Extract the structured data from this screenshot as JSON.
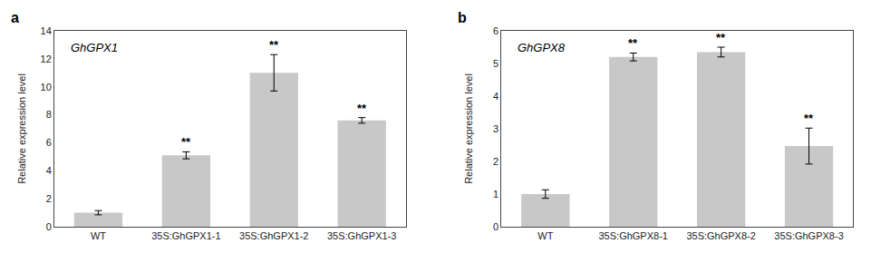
{
  "chart_data": [
    {
      "type": "bar",
      "title": "GhGPX1",
      "panel_label": "a",
      "categories": [
        "WT",
        "35S:GhGPX1-1",
        "35S:GhGPX1-2",
        "35S:GhGPX1-3"
      ],
      "values": [
        1.0,
        5.1,
        11.0,
        7.6
      ],
      "errors": [
        0.15,
        0.25,
        1.3,
        0.2
      ],
      "ylabel": "Relative expression level",
      "ylim": [
        0,
        14
      ],
      "yticks": [
        0,
        2,
        4,
        6,
        8,
        10,
        12,
        14
      ],
      "color": "#c8c8c8",
      "grid": false,
      "annotations": [
        {
          "category": "35S:GhGPX1-1",
          "text": "**"
        },
        {
          "category": "35S:GhGPX1-2",
          "text": "**"
        },
        {
          "category": "35S:GhGPX1-3",
          "text": "**"
        }
      ]
    },
    {
      "type": "bar",
      "title": "GhGPX8",
      "panel_label": "b",
      "categories": [
        "WT",
        "35S:GhGPX8-1",
        "35S:GhGPX8-2",
        "35S:GhGPX8-3"
      ],
      "values": [
        1.0,
        5.2,
        5.35,
        2.47
      ],
      "errors": [
        0.13,
        0.12,
        0.15,
        0.55
      ],
      "ylabel": "Relative expression level",
      "ylim": [
        0,
        6
      ],
      "yticks": [
        0,
        1,
        2,
        3,
        4,
        5,
        6
      ],
      "color": "#c8c8c8",
      "grid": false,
      "annotations": [
        {
          "category": "35S:GhGPX8-1",
          "text": "**"
        },
        {
          "category": "35S:GhGPX8-2",
          "text": "**"
        },
        {
          "category": "35S:GhGPX8-3",
          "text": "**"
        }
      ]
    }
  ]
}
